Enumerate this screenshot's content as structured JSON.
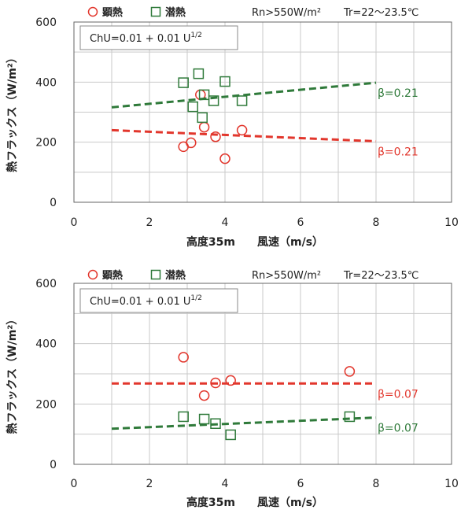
{
  "colors": {
    "sensible": "#e2362c",
    "latent": "#2f7a3a",
    "grid": "#c9c9c9",
    "axis": "#666666"
  },
  "chart_data": [
    {
      "type": "scatter",
      "title": "",
      "xlabel": "高度35m　　風速（m/s）",
      "ylabel": "熱フラックス（W/m²）",
      "xlim": [
        0,
        10
      ],
      "ylim": [
        0,
        600
      ],
      "x_ticks": [
        "0",
        "2",
        "4",
        "6",
        "8",
        "10"
      ],
      "y_ticks": [
        "0",
        "200",
        "400",
        "600"
      ],
      "grid": true,
      "legend": [
        {
          "name": "顕熱",
          "marker": "circle",
          "color": "#e2362c"
        },
        {
          "name": "潜熱",
          "marker": "square",
          "color": "#2f7a3a"
        }
      ],
      "conditions": [
        "Rn>550W/m²",
        "Tr=22～23.5℃"
      ],
      "formula": "ChU=0.01 + 0.01 U",
      "formula_sup": "1/2",
      "series": [
        {
          "name": "顕熱",
          "marker": "circle",
          "color": "#e2362c",
          "points": [
            [
              2.9,
              185
            ],
            [
              3.1,
              198
            ],
            [
              3.35,
              358
            ],
            [
              3.45,
              250
            ],
            [
              3.75,
              218
            ],
            [
              4.0,
              145
            ],
            [
              4.45,
              240
            ]
          ],
          "fit": {
            "x": [
              1,
              8
            ],
            "y": [
              240,
              203
            ],
            "label": "β=0.21"
          }
        },
        {
          "name": "潜熱",
          "marker": "square",
          "color": "#2f7a3a",
          "points": [
            [
              2.9,
              398
            ],
            [
              3.15,
              318
            ],
            [
              3.3,
              428
            ],
            [
              3.4,
              282
            ],
            [
              3.45,
              358
            ],
            [
              3.7,
              338
            ],
            [
              4.0,
              402
            ],
            [
              4.45,
              338
            ]
          ],
          "fit": {
            "x": [
              1,
              8
            ],
            "y": [
              316,
              398
            ],
            "label": "β=0.21"
          }
        }
      ]
    },
    {
      "type": "scatter",
      "title": "",
      "xlabel": "高度35m　　風速（m/s）",
      "ylabel": "熱フラックス（W/m²）",
      "xlim": [
        0,
        10
      ],
      "ylim": [
        0,
        600
      ],
      "x_ticks": [
        "0",
        "2",
        "4",
        "6",
        "8",
        "10"
      ],
      "y_ticks": [
        "0",
        "200",
        "400",
        "600"
      ],
      "grid": true,
      "legend": [
        {
          "name": "顕熱",
          "marker": "circle",
          "color": "#e2362c"
        },
        {
          "name": "潜熱",
          "marker": "square",
          "color": "#2f7a3a"
        }
      ],
      "conditions": [
        "Rn>550W/m²",
        "Tr=22～23.5℃"
      ],
      "formula": "ChU=0.01 + 0.01 U",
      "formula_sup": "1/2",
      "series": [
        {
          "name": "顕熱",
          "marker": "circle",
          "color": "#e2362c",
          "points": [
            [
              2.9,
              355
            ],
            [
              3.45,
              228
            ],
            [
              3.75,
              270
            ],
            [
              4.15,
              278
            ],
            [
              7.3,
              308
            ]
          ],
          "fit": {
            "x": [
              1,
              8
            ],
            "y": [
              268,
              268
            ],
            "label": "β=0.07"
          }
        },
        {
          "name": "潜熱",
          "marker": "square",
          "color": "#2f7a3a",
          "points": [
            [
              2.9,
              158
            ],
            [
              3.45,
              150
            ],
            [
              3.75,
              135
            ],
            [
              4.15,
              98
            ],
            [
              7.3,
              158
            ]
          ],
          "fit": {
            "x": [
              1,
              8
            ],
            "y": [
              118,
              155
            ],
            "label": "β=0.07"
          }
        }
      ]
    }
  ]
}
